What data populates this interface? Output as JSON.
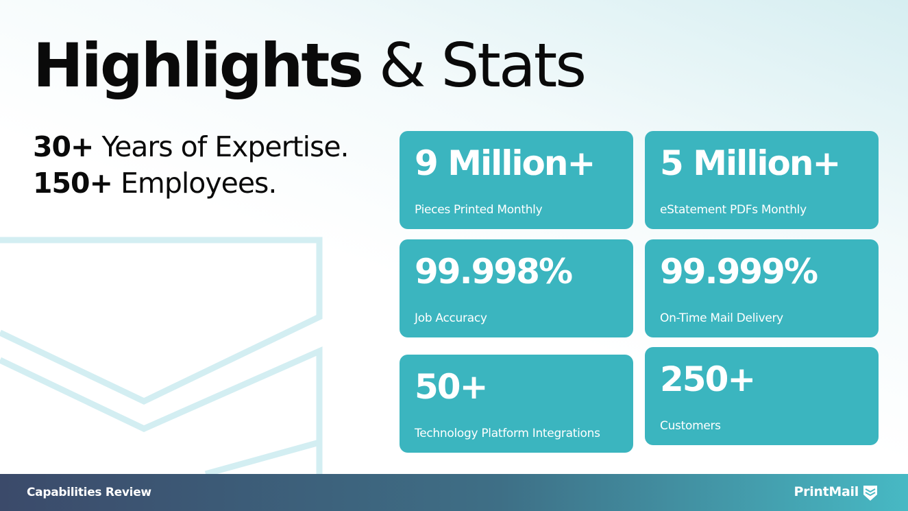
{
  "header": {
    "title_bold": "Highlights",
    "title_rest": "& Stats"
  },
  "intro": [
    {
      "bold": "30+",
      "text": "Years of Expertise."
    },
    {
      "bold": "150+",
      "text": "Employees."
    }
  ],
  "stats": [
    {
      "value": "9 Million+",
      "label": "Pieces Printed Monthly"
    },
    {
      "value": "5 Million+",
      "label": "eStatement PDFs Monthly"
    },
    {
      "value": "99.998%",
      "label": "Job Accuracy"
    },
    {
      "value": "99.999%",
      "label": "On-Time Mail Delivery"
    },
    {
      "value": "50+",
      "label": "Technology Platform Integrations"
    },
    {
      "value": "250+",
      "label": "Customers"
    }
  ],
  "footer": {
    "left": "Capabilities Review",
    "brand": "PrintMail"
  }
}
